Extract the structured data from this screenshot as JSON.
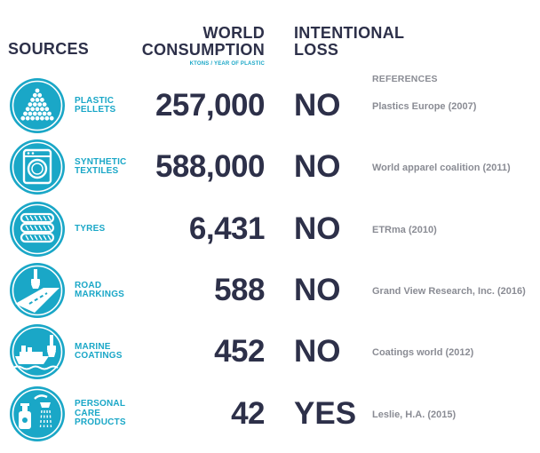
{
  "chart_data": {
    "type": "table",
    "headers": {
      "sources": "SOURCES",
      "consumption_line1": "WORLD",
      "consumption_line2": "CONSUMPTION",
      "consumption_unit": "KTONS / YEAR OF PLASTIC",
      "loss_line1": "INTENTIONAL",
      "loss_line2": "LOSS",
      "references": "REFERENCES"
    },
    "rows": [
      {
        "source_lines": [
          "PLASTIC",
          "PELLETS"
        ],
        "consumption": "257,000",
        "intentional_loss": "NO",
        "reference": "Plastics Europe (2007)",
        "icon": "pellets-icon"
      },
      {
        "source_lines": [
          "SYNTHETIC",
          "TEXTILES"
        ],
        "consumption": "588,000",
        "intentional_loss": "NO",
        "reference": "World apparel coalition (2011)",
        "icon": "washing-machine-icon"
      },
      {
        "source_lines": [
          "TYRES"
        ],
        "consumption": "6,431",
        "intentional_loss": "NO",
        "reference": "ETRma (2010)",
        "icon": "tyres-icon"
      },
      {
        "source_lines": [
          "ROAD",
          "MARKINGS"
        ],
        "consumption": "588",
        "intentional_loss": "NO",
        "reference": "Grand View Research, Inc. (2016)",
        "icon": "road-paintbrush-icon"
      },
      {
        "source_lines": [
          "MARINE",
          "COATINGS"
        ],
        "consumption": "452",
        "intentional_loss": "NO",
        "reference": "Coatings world (2012)",
        "icon": "ship-paintbrush-icon"
      },
      {
        "source_lines": [
          "PERSONAL",
          "CARE",
          "PRODUCTS"
        ],
        "consumption": "42",
        "intentional_loss": "YES",
        "reference": "Leslie, H.A. (2015)",
        "icon": "shower-bottle-icon"
      }
    ]
  },
  "colors": {
    "accent": "#1aa7c7",
    "dark": "#2d3049",
    "gray": "#8a8c94"
  }
}
